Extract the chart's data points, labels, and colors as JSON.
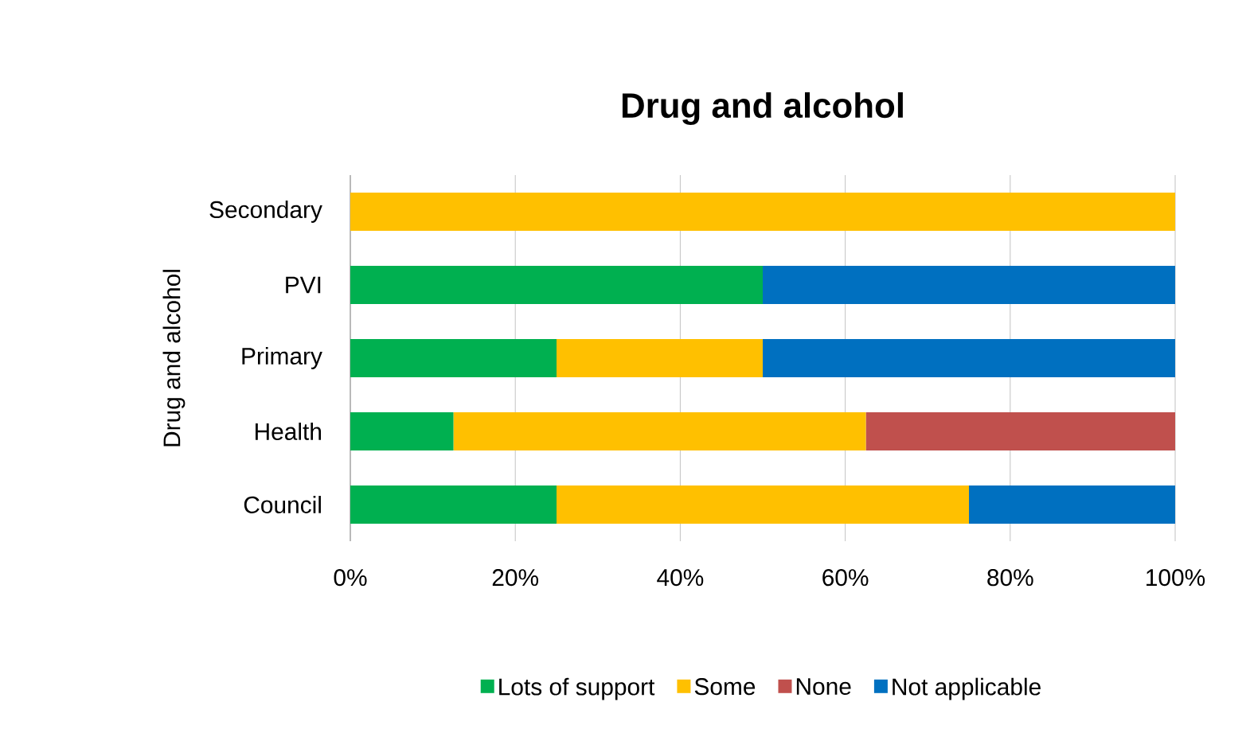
{
  "chart_data": {
    "type": "bar",
    "orientation": "horizontal",
    "stacked": true,
    "title": "Drug and alcohol",
    "ylabel": "Drug and alcohol",
    "categories": [
      "Secondary",
      "PVI",
      "Primary",
      "Health",
      "Council"
    ],
    "series": [
      {
        "name": "Lots of support",
        "color": "#00b050",
        "values": [
          0,
          50,
          25,
          12.5,
          25
        ]
      },
      {
        "name": "Some",
        "color": "#ffc000",
        "values": [
          100,
          0,
          25,
          50,
          50
        ]
      },
      {
        "name": "None",
        "color": "#c0504d",
        "values": [
          0,
          0,
          0,
          37.5,
          0
        ]
      },
      {
        "name": "Not applicable",
        "color": "#0070c0",
        "values": [
          0,
          50,
          50,
          0,
          25
        ]
      }
    ],
    "xlim": [
      0,
      100
    ],
    "xticks": [
      {
        "value": 0,
        "label": "0%"
      },
      {
        "value": 20,
        "label": "20%"
      },
      {
        "value": 40,
        "label": "40%"
      },
      {
        "value": 60,
        "label": "60%"
      },
      {
        "value": 80,
        "label": "80%"
      },
      {
        "value": 100,
        "label": "100%"
      }
    ],
    "grid": "x",
    "legend": "bottom"
  }
}
